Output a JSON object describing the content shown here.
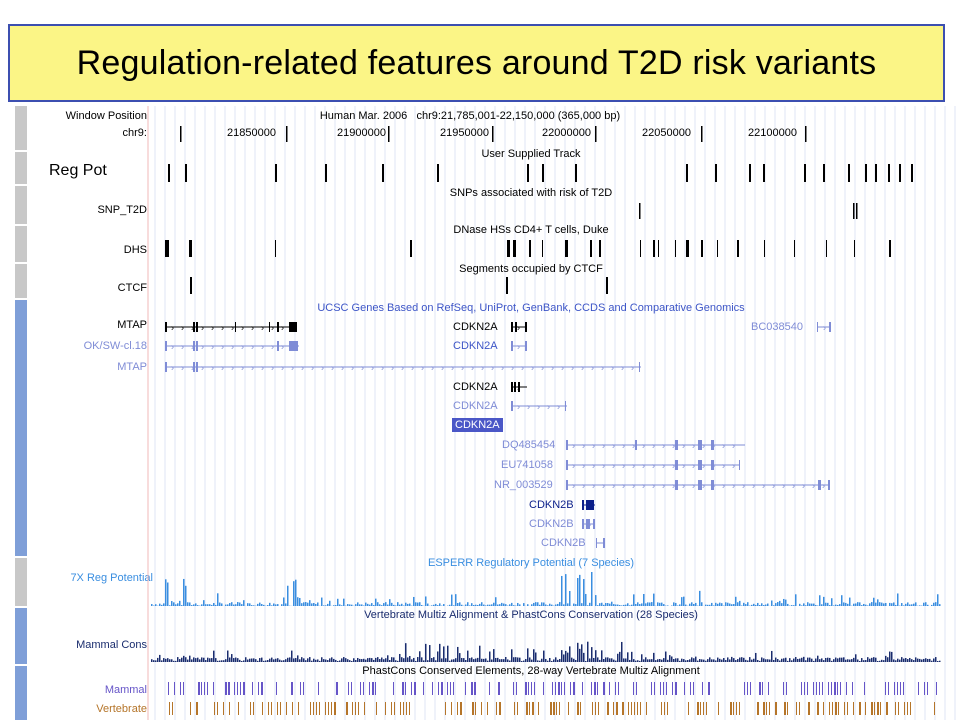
{
  "slide": {
    "title": "Regulation-related features around T2D risk variants"
  },
  "browser": {
    "callout_label": "Reg Pot",
    "ruler": {
      "position_label": "Window Position",
      "chrom_label": "chr9:",
      "assembly": "Human Mar. 2006",
      "coords": "chr9:21,785,001-22,150,000 (365,000 bp)",
      "ticks": [
        "21850000",
        "21900000",
        "21950000",
        "22000000",
        "22050000",
        "22100000"
      ]
    },
    "tracks": {
      "user": {
        "title": "User Supplied Track"
      },
      "snp": {
        "label": "SNP_T2D",
        "title": "SNPs associated with risk of T2D"
      },
      "dhs": {
        "label": "DHS",
        "title": "DNase HSs CD4+ T cells, Duke"
      },
      "ctcf": {
        "label": "CTCF",
        "title": "Segments occupied by CTCF"
      },
      "genes": {
        "title": "UCSC Genes Based on RefSeq, UniProt, GenBank, CCDS and Comparative Genomics",
        "left_labels": [
          "MTAP",
          "OK/SW-cl.18",
          "MTAP"
        ],
        "inline_labels": [
          "CDKN2A",
          "CDKN2A",
          "CDKN2A",
          "CDKN2A",
          "CDKN2A",
          "DQ485454",
          "EU741058",
          "NR_003529",
          "CDKN2B",
          "CDKN2B",
          "CDKN2B",
          "BC038540"
        ]
      },
      "esperr": {
        "label": "7X Reg Potential",
        "title": "ESPERR Regulatory Potential (7 Species)"
      },
      "cons": {
        "label": "Mammal Cons",
        "title": "Vertebrate Multiz Alignment & PhastCons Conservation (28 Species)"
      },
      "elements": {
        "title": "PhastCons Conserved Elements, 28-way Vertebrate Multiz Alignment",
        "labels": [
          "Mammal",
          "Vertebrate"
        ]
      }
    },
    "colors": {
      "gene_dark": "#000000",
      "gene_light": "#7f8cd6",
      "gene_selected": "#0b1f8a",
      "esperr": "#3a8ee0",
      "cons": "#1a2c6e",
      "mammal": "#6655c8",
      "vertebrate": "#b5752a"
    }
  }
}
